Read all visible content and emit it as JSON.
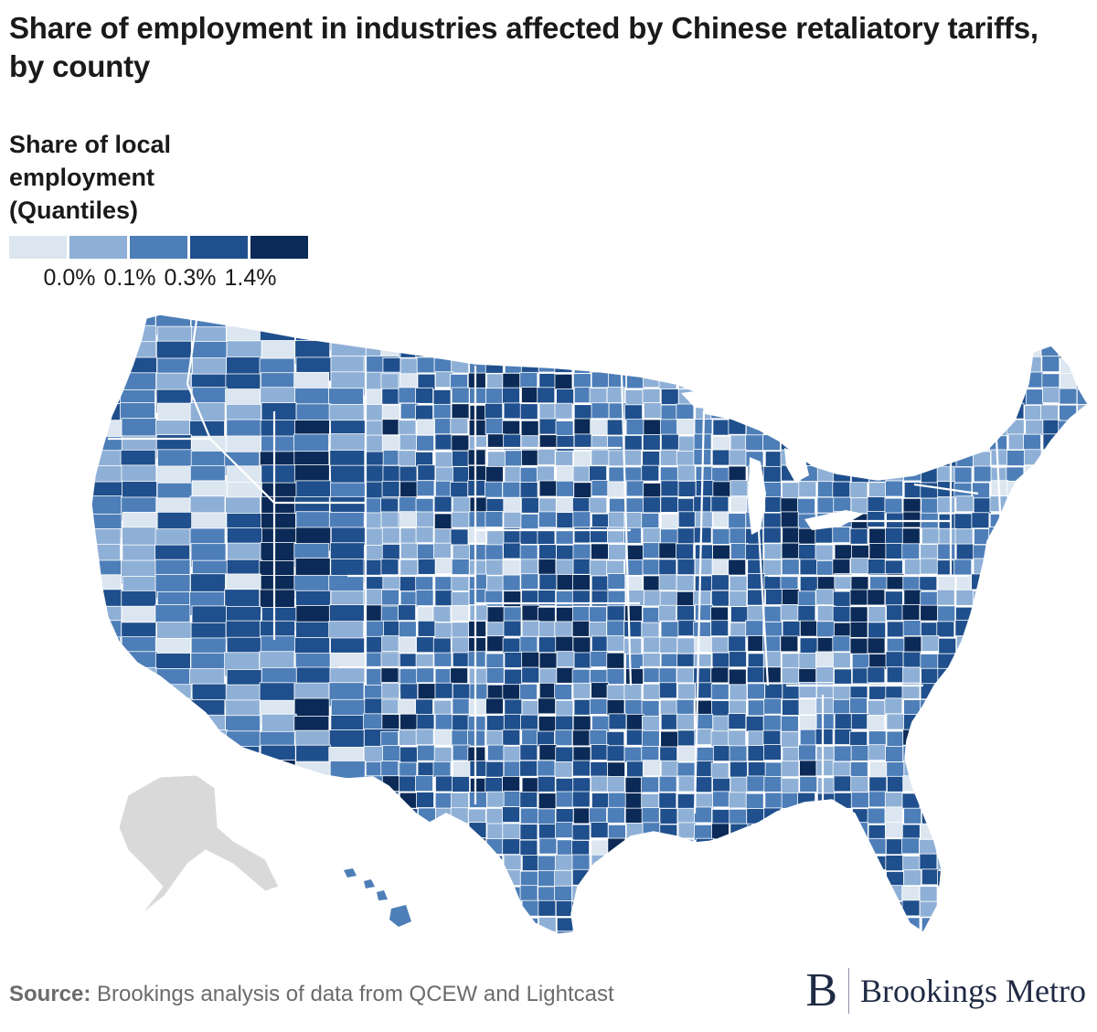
{
  "title": "Share of employment in industries affected by Chinese retaliatory tariffs, by county",
  "legend": {
    "title": "Share of local employment (Quantiles)",
    "colors": [
      "#dce6f0",
      "#8fb0d6",
      "#4d7eb8",
      "#1f4f8c",
      "#0b2a57"
    ],
    "ticks": [
      "0.0%",
      "0.1%",
      "0.3%",
      "1.4%"
    ]
  },
  "map": {
    "no_data_color": "#d9d9d9",
    "border_color": "#ffffff"
  },
  "source": {
    "label": "Source:",
    "text": "Brookings analysis of data from QCEW and Lightcast"
  },
  "brand": {
    "mark": "B",
    "name": "Brookings Metro"
  }
}
